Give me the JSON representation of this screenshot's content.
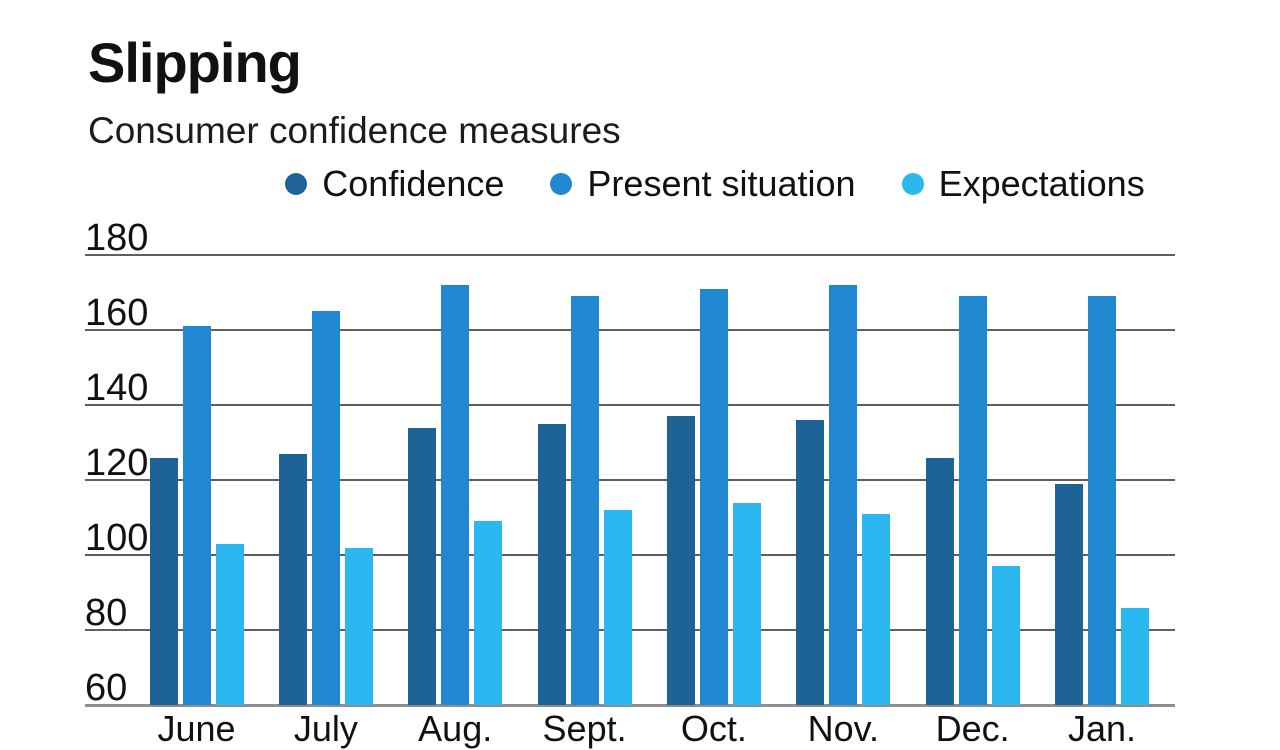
{
  "header": {
    "title": "Slipping",
    "subtitle": "Consumer confidence measures"
  },
  "chart_data": {
    "type": "bar",
    "title": "Slipping",
    "subtitle": "Consumer confidence measures",
    "categories": [
      "June",
      "July",
      "Aug.",
      "Sept.",
      "Oct.",
      "Nov.",
      "Dec.",
      "Jan."
    ],
    "series": [
      {
        "name": "Confidence",
        "color": "#1D6396",
        "values": [
          126,
          127,
          134,
          135,
          137,
          136,
          126,
          119
        ]
      },
      {
        "name": "Present situation",
        "color": "#2087D1",
        "values": [
          161,
          165,
          172,
          169,
          171,
          172,
          169,
          169
        ]
      },
      {
        "name": "Expectations",
        "color": "#2BB8F0",
        "values": [
          103,
          102,
          109,
          112,
          114,
          111,
          97,
          86
        ]
      }
    ],
    "ylim": [
      60,
      180
    ],
    "yticks": [
      60,
      80,
      100,
      120,
      140,
      160,
      180
    ],
    "grid": true,
    "legend_position": "top",
    "xlabel": "",
    "ylabel": ""
  }
}
